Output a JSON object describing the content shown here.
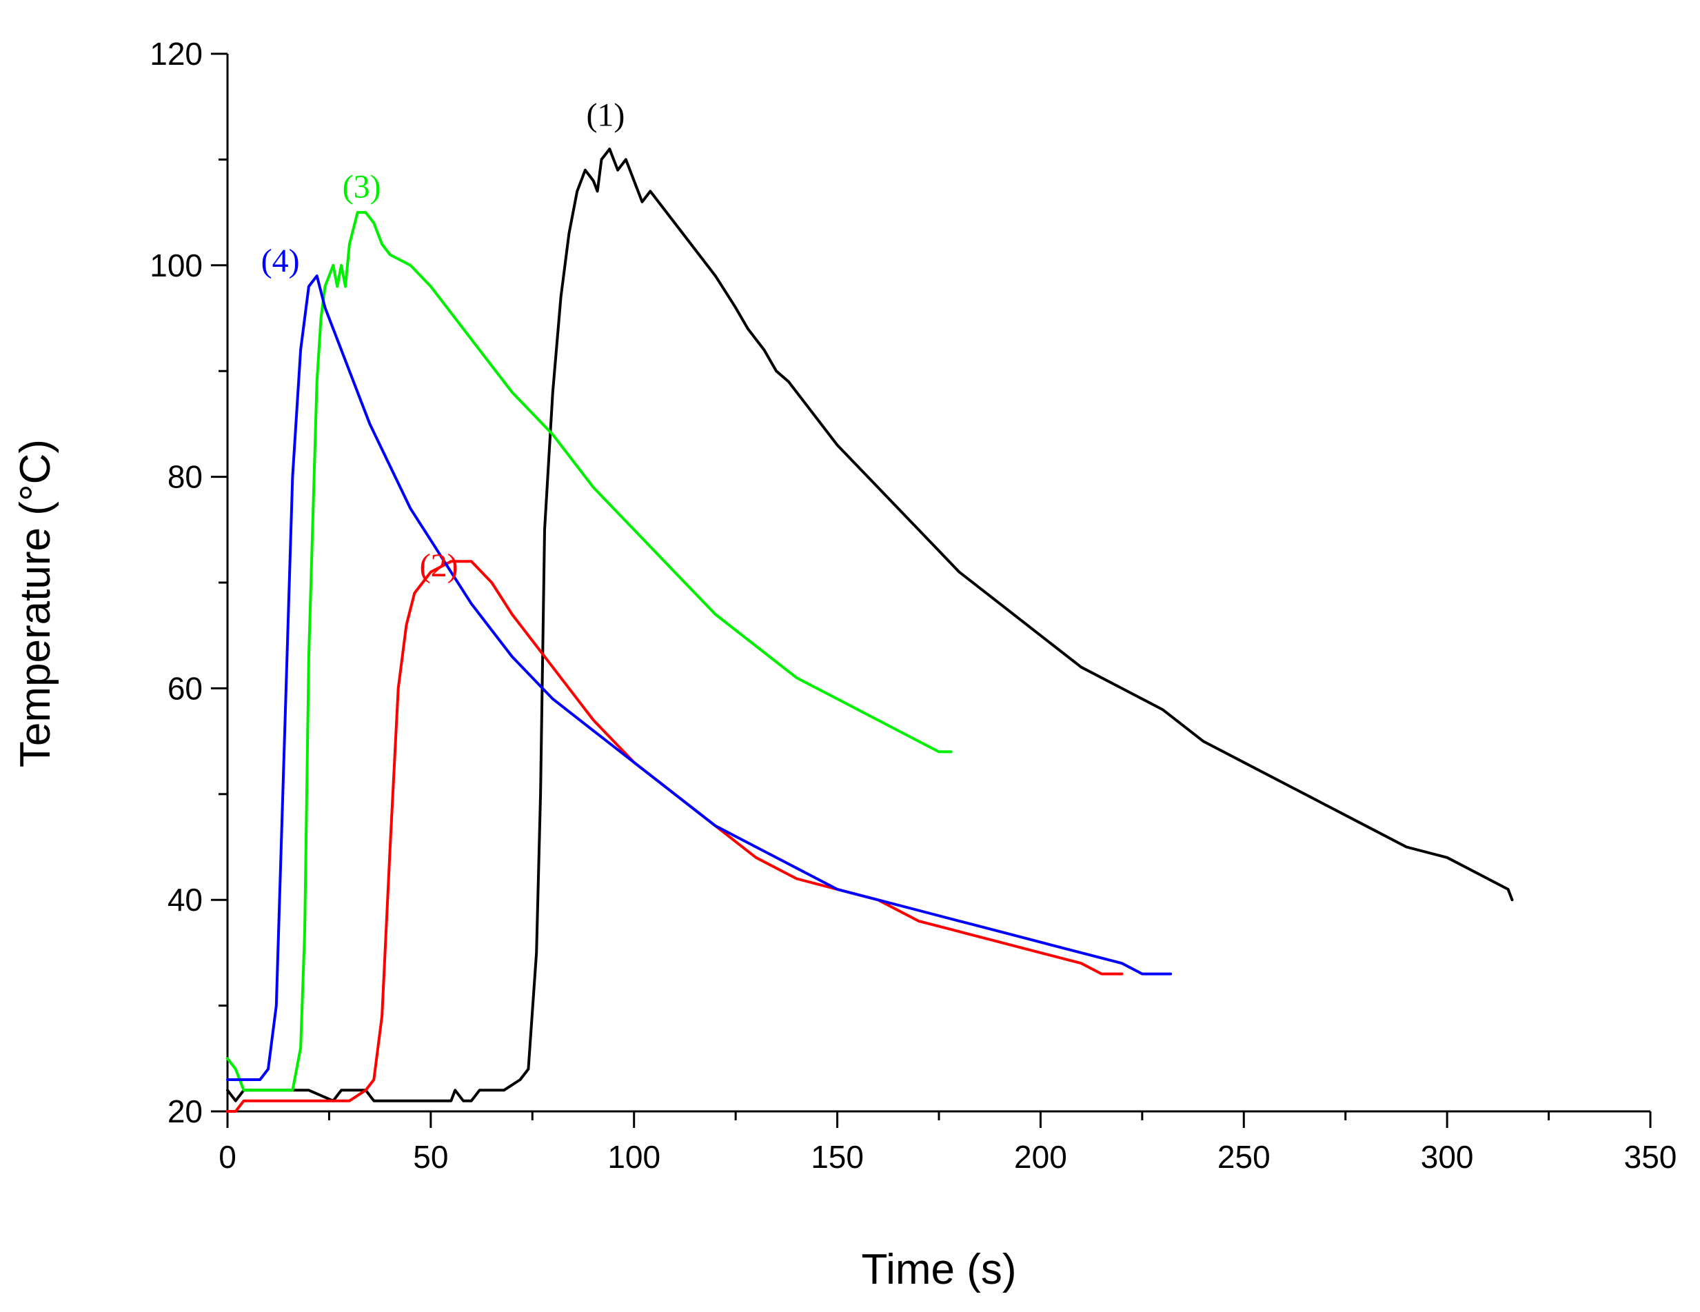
{
  "chart_data": {
    "type": "line",
    "title": "",
    "xlabel": "Time (s)",
    "ylabel": "Temperature (°C)",
    "xlim": [
      0,
      350
    ],
    "ylim": [
      20,
      120
    ],
    "x_ticks": [
      0,
      50,
      100,
      150,
      200,
      250,
      300,
      350
    ],
    "y_ticks": [
      20,
      40,
      60,
      80,
      100,
      120
    ],
    "grid": false,
    "legend": "none",
    "series": [
      {
        "name": "(1)",
        "label": "(1)",
        "color": "#000000",
        "x": [
          0,
          2,
          4,
          10,
          20,
          26,
          28,
          30,
          34,
          36,
          50,
          55,
          56,
          58,
          60,
          62,
          68,
          72,
          74,
          76,
          77,
          78,
          80,
          82,
          84,
          86,
          88,
          90,
          91,
          92,
          94,
          96,
          98,
          100,
          102,
          104,
          110,
          120,
          125,
          128,
          132,
          135,
          138,
          142,
          150,
          160,
          170,
          180,
          190,
          200,
          210,
          220,
          230,
          240,
          250,
          260,
          270,
          280,
          290,
          300,
          310,
          315,
          316
        ],
        "y": [
          22,
          21,
          22,
          22,
          22,
          21,
          22,
          22,
          22,
          21,
          21,
          21,
          22,
          21,
          21,
          22,
          22,
          23,
          24,
          35,
          50,
          75,
          88,
          97,
          103,
          107,
          109,
          108,
          107,
          110,
          111,
          109,
          110,
          108,
          106,
          107,
          104,
          99,
          96,
          94,
          92,
          90,
          89,
          87,
          83,
          79,
          75,
          71,
          68,
          65,
          62,
          60,
          58,
          55,
          53,
          51,
          49,
          47,
          45,
          44,
          42,
          41,
          40
        ]
      },
      {
        "name": "(2)",
        "label": "(2)",
        "color": "#ff0000",
        "x": [
          0,
          2,
          4,
          10,
          30,
          34,
          36,
          38,
          40,
          42,
          44,
          46,
          48,
          50,
          55,
          60,
          65,
          70,
          80,
          90,
          100,
          110,
          120,
          130,
          140,
          150,
          160,
          170,
          180,
          190,
          200,
          210,
          215,
          220
        ],
        "y": [
          20,
          20,
          21,
          21,
          21,
          22,
          23,
          29,
          45,
          60,
          66,
          69,
          70,
          71,
          72,
          72,
          70,
          67,
          62,
          57,
          53,
          50,
          47,
          44,
          42,
          41,
          40,
          38,
          37,
          36,
          35,
          34,
          33,
          33
        ]
      },
      {
        "name": "(3)",
        "label": "(3)",
        "color": "#00ee00",
        "x": [
          0,
          2,
          4,
          10,
          16,
          18,
          19,
          20,
          22,
          23,
          24,
          26,
          27,
          28,
          29,
          30,
          32,
          34,
          36,
          38,
          40,
          45,
          50,
          60,
          70,
          80,
          90,
          100,
          110,
          120,
          130,
          140,
          150,
          160,
          170,
          175,
          178
        ],
        "y": [
          25,
          24,
          22,
          22,
          22,
          26,
          37,
          63,
          89,
          95,
          98,
          100,
          98,
          100,
          98,
          102,
          105,
          105,
          104,
          102,
          101,
          100,
          98,
          93,
          88,
          84,
          79,
          75,
          71,
          67,
          64,
          61,
          59,
          57,
          55,
          54,
          54
        ]
      },
      {
        "name": "(4)",
        "label": "(4)",
        "color": "#0000ff",
        "x": [
          0,
          2,
          4,
          8,
          10,
          12,
          14,
          16,
          18,
          20,
          22,
          24,
          26,
          28,
          30,
          35,
          40,
          45,
          50,
          55,
          60,
          70,
          80,
          90,
          100,
          110,
          120,
          130,
          140,
          150,
          160,
          170,
          180,
          190,
          200,
          210,
          220,
          225,
          232
        ],
        "y": [
          23,
          23,
          23,
          23,
          24,
          30,
          55,
          80,
          92,
          98,
          99,
          96,
          94,
          92,
          90,
          85,
          81,
          77,
          74,
          71,
          68,
          63,
          59,
          56,
          53,
          50,
          47,
          45,
          43,
          41,
          40,
          39,
          38,
          37,
          36,
          35,
          34,
          33,
          33
        ]
      }
    ]
  }
}
